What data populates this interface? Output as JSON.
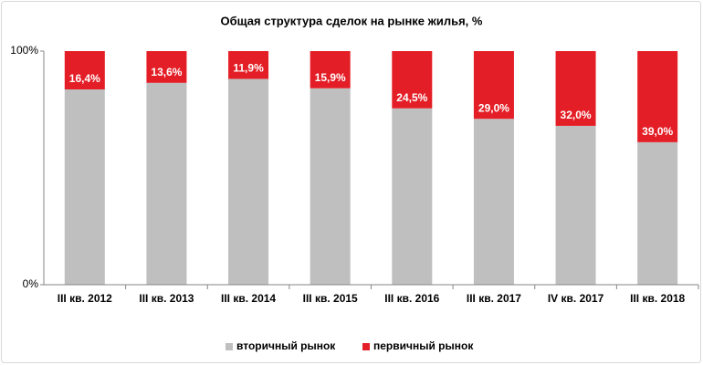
{
  "chart_data": {
    "type": "stacked_bar",
    "title": "Общая структура сделок на рынке жилья, %",
    "categories": [
      "III кв. 2012",
      "III кв. 2013",
      "III кв. 2014",
      "III кв. 2015",
      "III кв. 2016",
      "III кв. 2017",
      "IV кв. 2017",
      "III кв. 2018"
    ],
    "series": [
      {
        "name": "вторичный рынок",
        "color": "#bfbfbf",
        "values": [
          83.6,
          86.4,
          88.1,
          84.1,
          75.5,
          71.0,
          68.0,
          61.0
        ]
      },
      {
        "name": "первичный рынок",
        "color": "#e41e26",
        "values": [
          16.4,
          13.6,
          11.9,
          15.9,
          24.5,
          29.0,
          32.0,
          39.0
        ],
        "value_labels": [
          "16,4%",
          "13,6%",
          "11,9%",
          "15,9%",
          "24,5%",
          "29,0%",
          "32,0%",
          "39,0%"
        ]
      }
    ],
    "ylim": [
      0,
      100
    ],
    "yticks": [
      {
        "value": 0,
        "label": "0%"
      },
      {
        "value": 100,
        "label": "100%"
      }
    ],
    "legend": "bottom"
  }
}
